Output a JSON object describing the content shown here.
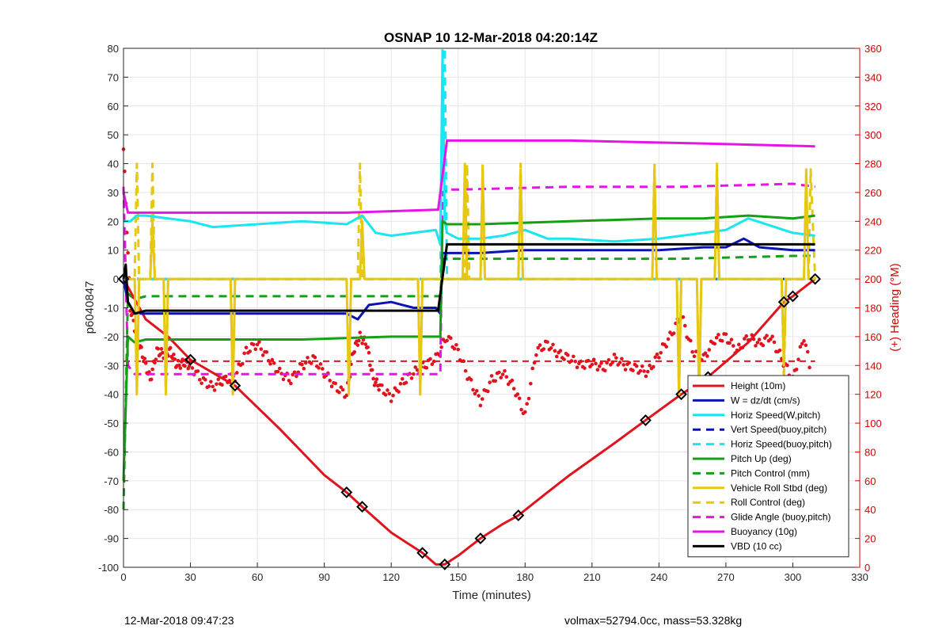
{
  "chart_data": {
    "type": "line",
    "title": "OSNAP 10 12-Mar-2018 04:20:14Z",
    "xlabel": "Time (minutes)",
    "ylabel": "p6040847",
    "y2label": "(+) Heading (°M)",
    "xlim": [
      0,
      330
    ],
    "ylim": [
      -100,
      80
    ],
    "y2lim": [
      0,
      360
    ],
    "xticks": [
      0,
      30,
      60,
      90,
      120,
      150,
      180,
      210,
      240,
      270,
      300,
      330
    ],
    "yticks": [
      -100,
      -90,
      -80,
      -70,
      -60,
      -50,
      -40,
      -30,
      -20,
      -10,
      0,
      10,
      20,
      30,
      40,
      50,
      60,
      70,
      80
    ],
    "y2ticks": [
      0,
      20,
      40,
      60,
      80,
      100,
      120,
      140,
      160,
      180,
      200,
      220,
      240,
      260,
      280,
      300,
      320,
      340,
      360
    ],
    "grid": true,
    "legend_position": "bottom-right",
    "series": [
      {
        "name": "Height (10m)",
        "color": "#e0141e",
        "style": "solid",
        "x": [
          0,
          10,
          20,
          30,
          50,
          70,
          90,
          100,
          107,
          120,
          134,
          140,
          144,
          150,
          160,
          170,
          177,
          190,
          200,
          220,
          234,
          250,
          262,
          280,
          296,
          300,
          310
        ],
        "y": [
          0,
          -14,
          -20,
          -28,
          -37,
          -52,
          -68,
          -74,
          -79,
          -88,
          -95,
          -99,
          -99,
          -96,
          -90,
          -85,
          -82,
          -74,
          -68,
          -57,
          -49,
          -40,
          -34,
          -22,
          -8,
          -6,
          0
        ]
      },
      {
        "name": "W = dz/dt (cm/s)",
        "color": "#0a14b4",
        "style": "solid",
        "x": [
          0,
          2,
          5,
          10,
          20,
          40,
          60,
          80,
          95,
          100,
          105,
          110,
          120,
          130,
          140,
          142,
          143,
          150,
          160,
          180,
          200,
          220,
          240,
          260,
          270,
          278,
          285,
          300,
          310
        ],
        "y": [
          0,
          -8,
          -12,
          -12,
          -12,
          -12,
          -12,
          -12,
          -12,
          -12,
          -14,
          -9,
          -8,
          -10,
          -10,
          -12,
          9,
          9,
          9,
          10,
          10,
          10,
          10,
          11,
          11,
          14,
          11,
          10,
          10
        ]
      },
      {
        "name": "Horiz Speed(W,pitch)",
        "color": "#19e6f0",
        "style": "solid",
        "x": [
          0,
          3,
          6,
          10,
          20,
          30,
          40,
          60,
          80,
          100,
          107,
          113,
          120,
          130,
          140,
          142,
          143,
          144,
          145,
          150,
          160,
          170,
          180,
          190,
          200,
          220,
          240,
          260,
          270,
          280,
          300,
          310
        ],
        "y": [
          20,
          20,
          22,
          22,
          21,
          20,
          18,
          19,
          20,
          19,
          22,
          16,
          15,
          16,
          17,
          12,
          78,
          20,
          16,
          14,
          14,
          15,
          17,
          14,
          14,
          13,
          14,
          16,
          17,
          21,
          16,
          15
        ]
      },
      {
        "name": "Vert Speed(buoy,pitch)",
        "color": "#0a14b4",
        "style": "dashed",
        "x": [
          0,
          310
        ],
        "y": [
          0,
          0
        ]
      },
      {
        "name": "Horiz Speed(buoy,pitch)",
        "color": "#19e6f0",
        "style": "dashed",
        "x": [
          0,
          142,
          143,
          144,
          145,
          310
        ],
        "y": [
          0,
          0,
          80,
          80,
          0,
          0
        ]
      },
      {
        "name": "Pitch Up (deg)",
        "color": "#14a014",
        "style": "solid",
        "x": [
          0,
          2,
          5,
          10,
          40,
          80,
          120,
          140,
          142,
          143,
          145,
          160,
          200,
          240,
          260,
          280,
          300,
          310
        ],
        "y": [
          -70,
          -20,
          -22,
          -21,
          -21,
          -21,
          -20,
          -20,
          -20,
          20,
          19,
          19,
          20,
          21,
          21,
          22,
          21,
          22
        ]
      },
      {
        "name": "Pitch Control (mm)",
        "color": "#14a014",
        "style": "dashed",
        "x": [
          0,
          2,
          5,
          10,
          50,
          100,
          140,
          142,
          143,
          150,
          200,
          250,
          300,
          310
        ],
        "y": [
          -80,
          -5,
          -7,
          -6,
          -6,
          -6,
          -6,
          -6,
          7,
          7,
          7,
          7,
          8,
          8
        ]
      },
      {
        "name": "Vehicle Roll Stbd (deg)",
        "color": "#e6c814",
        "style": "solid",
        "x": [
          0,
          5,
          6,
          7,
          10,
          12,
          13,
          14,
          18,
          19,
          20,
          48,
          49,
          50,
          100,
          101,
          102,
          106,
          107,
          108,
          132,
          133,
          134,
          145,
          150,
          152,
          153,
          154,
          160,
          161,
          162,
          177,
          178,
          179,
          237,
          238,
          239,
          248,
          249,
          250,
          257,
          258,
          259,
          265,
          266,
          267,
          295,
          296,
          297,
          305,
          306,
          307,
          310
        ],
        "y": [
          0,
          0,
          -40,
          0,
          0,
          0,
          20,
          0,
          0,
          -40,
          0,
          0,
          -40,
          0,
          0,
          -40,
          0,
          0,
          20,
          0,
          0,
          -40,
          0,
          0,
          0,
          0,
          40,
          0,
          0,
          38,
          0,
          0,
          38,
          0,
          0,
          38,
          0,
          0,
          -40,
          0,
          0,
          -40,
          0,
          0,
          38,
          0,
          0,
          -30,
          0,
          0,
          38,
          0,
          0
        ]
      },
      {
        "name": "Roll Control (deg)",
        "color": "#e6c814",
        "style": "dashed",
        "x": [
          0,
          5,
          6,
          7,
          12,
          13,
          14,
          18,
          19,
          20,
          48,
          49,
          50,
          105,
          106,
          107,
          132,
          133,
          134,
          150,
          153,
          154,
          155,
          160,
          161,
          162,
          177,
          178,
          179,
          237,
          238,
          239,
          248,
          249,
          250,
          257,
          258,
          259,
          265,
          266,
          267,
          295,
          296,
          297,
          307,
          308,
          310
        ],
        "y": [
          0,
          0,
          40,
          0,
          0,
          40,
          0,
          0,
          -40,
          0,
          0,
          -40,
          0,
          0,
          40,
          0,
          0,
          -40,
          0,
          0,
          0,
          40,
          0,
          0,
          40,
          0,
          0,
          40,
          0,
          0,
          40,
          0,
          0,
          -40,
          0,
          0,
          -40,
          0,
          0,
          40,
          0,
          0,
          -35,
          0,
          0,
          38,
          0
        ]
      },
      {
        "name": "Glide Angle (buoy,pitch)",
        "color": "#e614e6",
        "style": "dashed",
        "x": [
          0,
          2,
          5,
          10,
          50,
          100,
          140,
          142,
          143,
          145,
          150,
          200,
          250,
          300,
          310
        ],
        "y": [
          32,
          -30,
          -33,
          -33,
          -33,
          -33,
          -33,
          -33,
          30,
          31,
          31,
          32,
          32,
          33,
          32
        ]
      },
      {
        "name": "Buoyancy (10g)",
        "color": "#e614e6",
        "style": "solid",
        "x": [
          0,
          2,
          10,
          50,
          100,
          140,
          141,
          145,
          200,
          260,
          310
        ],
        "y": [
          30,
          23,
          23,
          23,
          23,
          24,
          24,
          48,
          48,
          47,
          46
        ]
      },
      {
        "name": "VBD (10 cc)",
        "color": "#000000",
        "style": "solid",
        "x": [
          0,
          1,
          2,
          5,
          10,
          50,
          100,
          140,
          141,
          145,
          200,
          260,
          310
        ],
        "y": [
          0,
          5,
          -8,
          -12,
          -11,
          -11,
          -11,
          -11,
          -11,
          12,
          12,
          12,
          12
        ]
      }
    ],
    "heading": {
      "name": "Heading (deg M)",
      "color": "#e0141e",
      "mean": 143,
      "x": [
        0,
        3,
        6,
        9,
        12,
        15,
        18,
        21,
        24,
        27,
        30,
        35,
        40,
        45,
        50,
        55,
        60,
        65,
        70,
        75,
        80,
        85,
        90,
        95,
        100,
        103,
        106,
        109,
        112,
        115,
        120,
        125,
        130,
        135,
        140,
        145,
        150,
        155,
        160,
        165,
        170,
        175,
        180,
        185,
        190,
        195,
        200,
        205,
        210,
        215,
        220,
        225,
        230,
        235,
        240,
        245,
        250,
        255,
        260,
        265,
        270,
        275,
        280,
        285,
        290,
        295,
        300,
        305,
        310
      ],
      "y": [
        290,
        180,
        160,
        145,
        130,
        150,
        148,
        150,
        140,
        142,
        140,
        130,
        125,
        130,
        132,
        150,
        155,
        145,
        135,
        130,
        140,
        145,
        135,
        125,
        120,
        150,
        160,
        155,
        130,
        125,
        118,
        128,
        135,
        140,
        145,
        160,
        150,
        130,
        115,
        130,
        135,
        125,
        105,
        150,
        155,
        148,
        145,
        140,
        142,
        138,
        145,
        140,
        138,
        135,
        148,
        160,
        175,
        150,
        145,
        158,
        160,
        150,
        160,
        155,
        160,
        145,
        130,
        160,
        120
      ]
    }
  },
  "footer": {
    "timestamp": "12-Mar-2018 09:47:23",
    "info": "volmax=52794.0cc, mass=53.328kg"
  }
}
